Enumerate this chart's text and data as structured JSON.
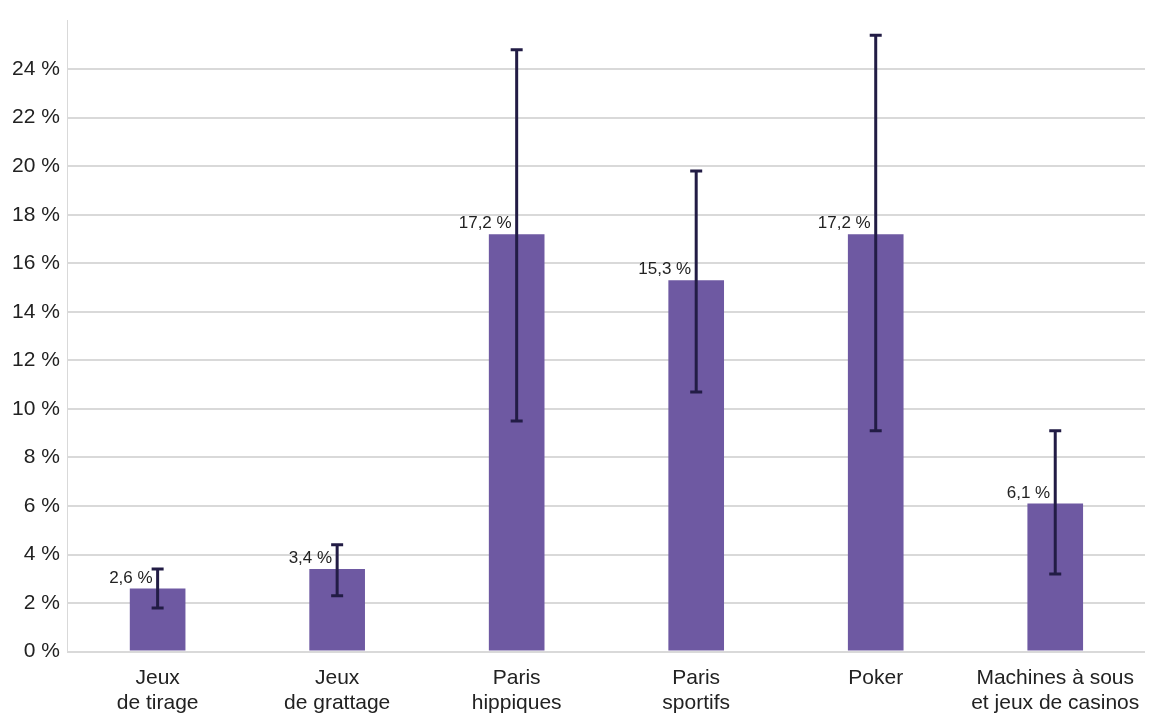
{
  "chart_data": {
    "type": "bar",
    "categories": [
      "Jeux\nde tirage",
      "Jeux\nde grattage",
      "Paris\nhippiques",
      "Paris\nsportifs",
      "Poker",
      "Machines à sous\net jeux de casinos"
    ],
    "values": [
      2.6,
      3.4,
      17.2,
      15.3,
      17.2,
      6.1
    ],
    "value_labels": [
      "2,6 %",
      "3,4 %",
      "17,2 %",
      "15,3 %",
      "17,2 %",
      "6,1 %"
    ],
    "errors": [
      [
        1.8,
        3.4
      ],
      [
        2.3,
        4.4
      ],
      [
        9.5,
        24.8
      ],
      [
        10.7,
        19.8
      ],
      [
        9.1,
        25.4
      ],
      [
        3.2,
        9.1
      ]
    ],
    "color": "#6e59a2",
    "ylim": [
      0,
      26
    ],
    "yticks": [
      {
        "value": 0,
        "label": "0 %"
      },
      {
        "value": 2,
        "label": "2 %"
      },
      {
        "value": 4,
        "label": "4 %"
      },
      {
        "value": 6,
        "label": "6 %"
      },
      {
        "value": 8,
        "label": "8 %"
      },
      {
        "value": 10,
        "label": "10 %"
      },
      {
        "value": 12,
        "label": "12 %"
      },
      {
        "value": 14,
        "label": "14 %"
      },
      {
        "value": 16,
        "label": "16 %"
      },
      {
        "value": 18,
        "label": "18 %"
      },
      {
        "value": 20,
        "label": "20 %"
      },
      {
        "value": 22,
        "label": "22 %"
      },
      {
        "value": 24,
        "label": "24 %"
      }
    ],
    "grid": "y",
    "legend": false
  }
}
